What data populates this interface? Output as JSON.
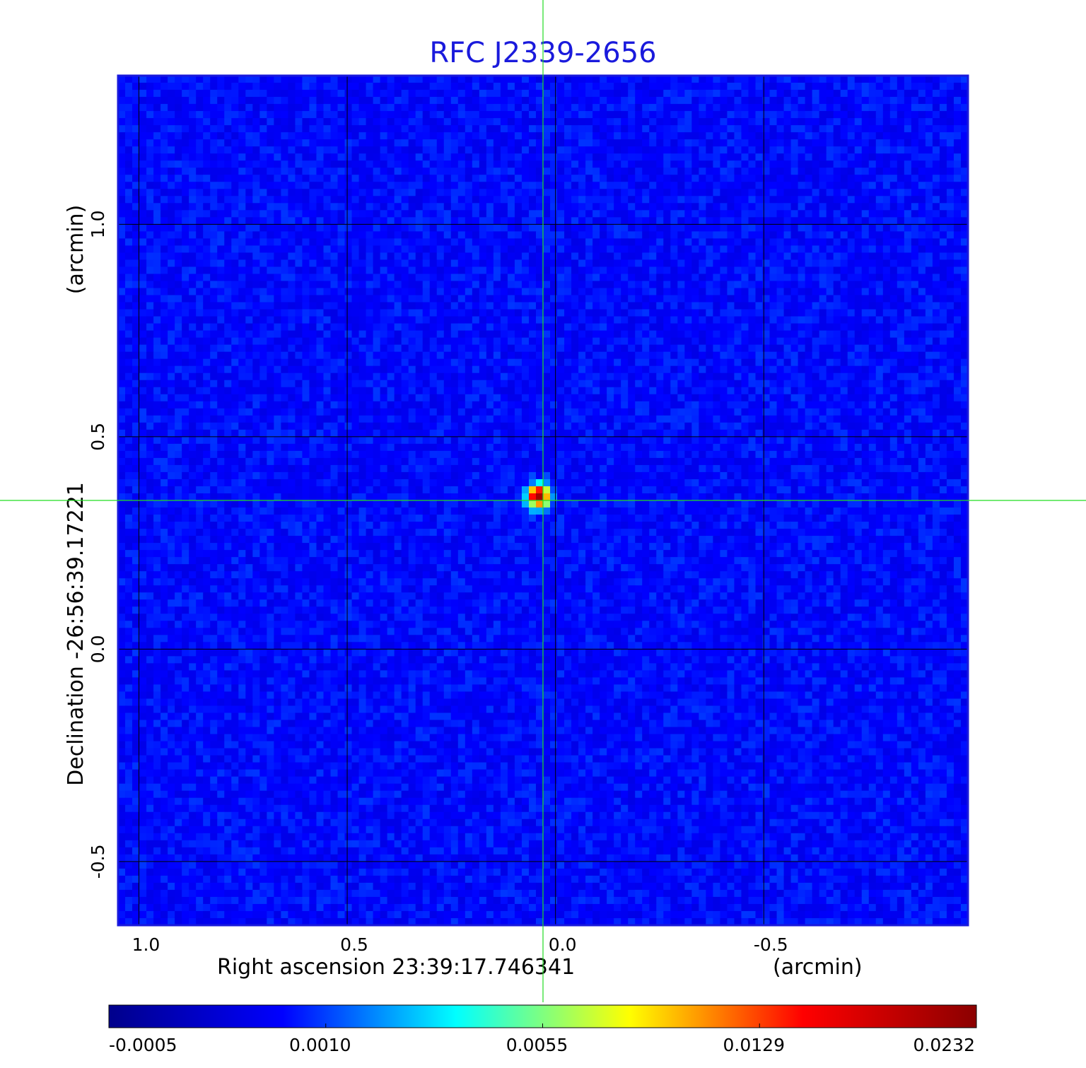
{
  "chart_data": {
    "type": "heatmap",
    "title": "RFC J2339-2656",
    "xlabel": "Right ascension  23:39:17.746341",
    "xunit": "(arcmin)",
    "ylabel": "Declination  -26:56:39.17221",
    "yunit": "(arcmin)",
    "x_ticks": [
      "1.0",
      "0.5",
      "0.0",
      "-0.5"
    ],
    "x_tick_values": [
      1.0,
      0.5,
      0.0,
      -0.5
    ],
    "y_ticks": [
      "1.0",
      "0.5",
      "0.0",
      "-0.5"
    ],
    "y_tick_values": [
      1.0,
      0.5,
      0.0,
      -0.5
    ],
    "xlim": [
      1.05,
      -0.99
    ],
    "ylim": [
      -0.65,
      1.35
    ],
    "grid": true,
    "source_peak": {
      "x": 0.04,
      "y": 0.36,
      "value": 0.0232
    },
    "crosshair": {
      "x": 0.03,
      "y": 0.35,
      "color": "#22dd22"
    },
    "background_level": -0.0002,
    "colorbar": {
      "ticks": [
        "-0.0005",
        "0.0010",
        "0.0055",
        "0.0129",
        "0.0232"
      ],
      "colormap": "jet",
      "colors": [
        "#00008b",
        "#0000ff",
        "#00ffff",
        "#ffff00",
        "#ff0000",
        "#8b0000"
      ]
    }
  }
}
